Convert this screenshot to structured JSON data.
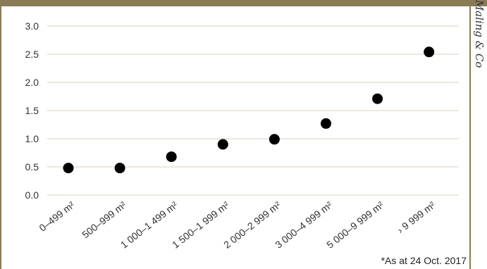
{
  "header": {
    "band_text": "",
    "band_color": "#8a7a55"
  },
  "side_credit": ": Maling & Co",
  "footnote": "*As at 24 Oct. 2017",
  "chart_data": {
    "type": "scatter",
    "title": "",
    "xlabel": "",
    "ylabel": "",
    "categories": [
      "0–499 m²",
      "500–999 m²",
      "1 000–1 499 m²",
      "1 500–1 999 m²",
      "2 000–2 999 m²",
      "3 000–4 999 m²",
      "5 000–9 999 m²",
      "› 9 999 m²"
    ],
    "values": [
      0.48,
      0.48,
      0.68,
      0.9,
      0.99,
      1.27,
      1.71,
      2.54
    ],
    "yticks": [
      "0.0",
      "0.5",
      "1.0",
      "1.5",
      "2.0",
      "2.5",
      "3.0"
    ],
    "ylim": [
      0,
      3.0
    ],
    "grid": true,
    "marker_color": "#000000",
    "grid_color": "#d8d2c2"
  }
}
